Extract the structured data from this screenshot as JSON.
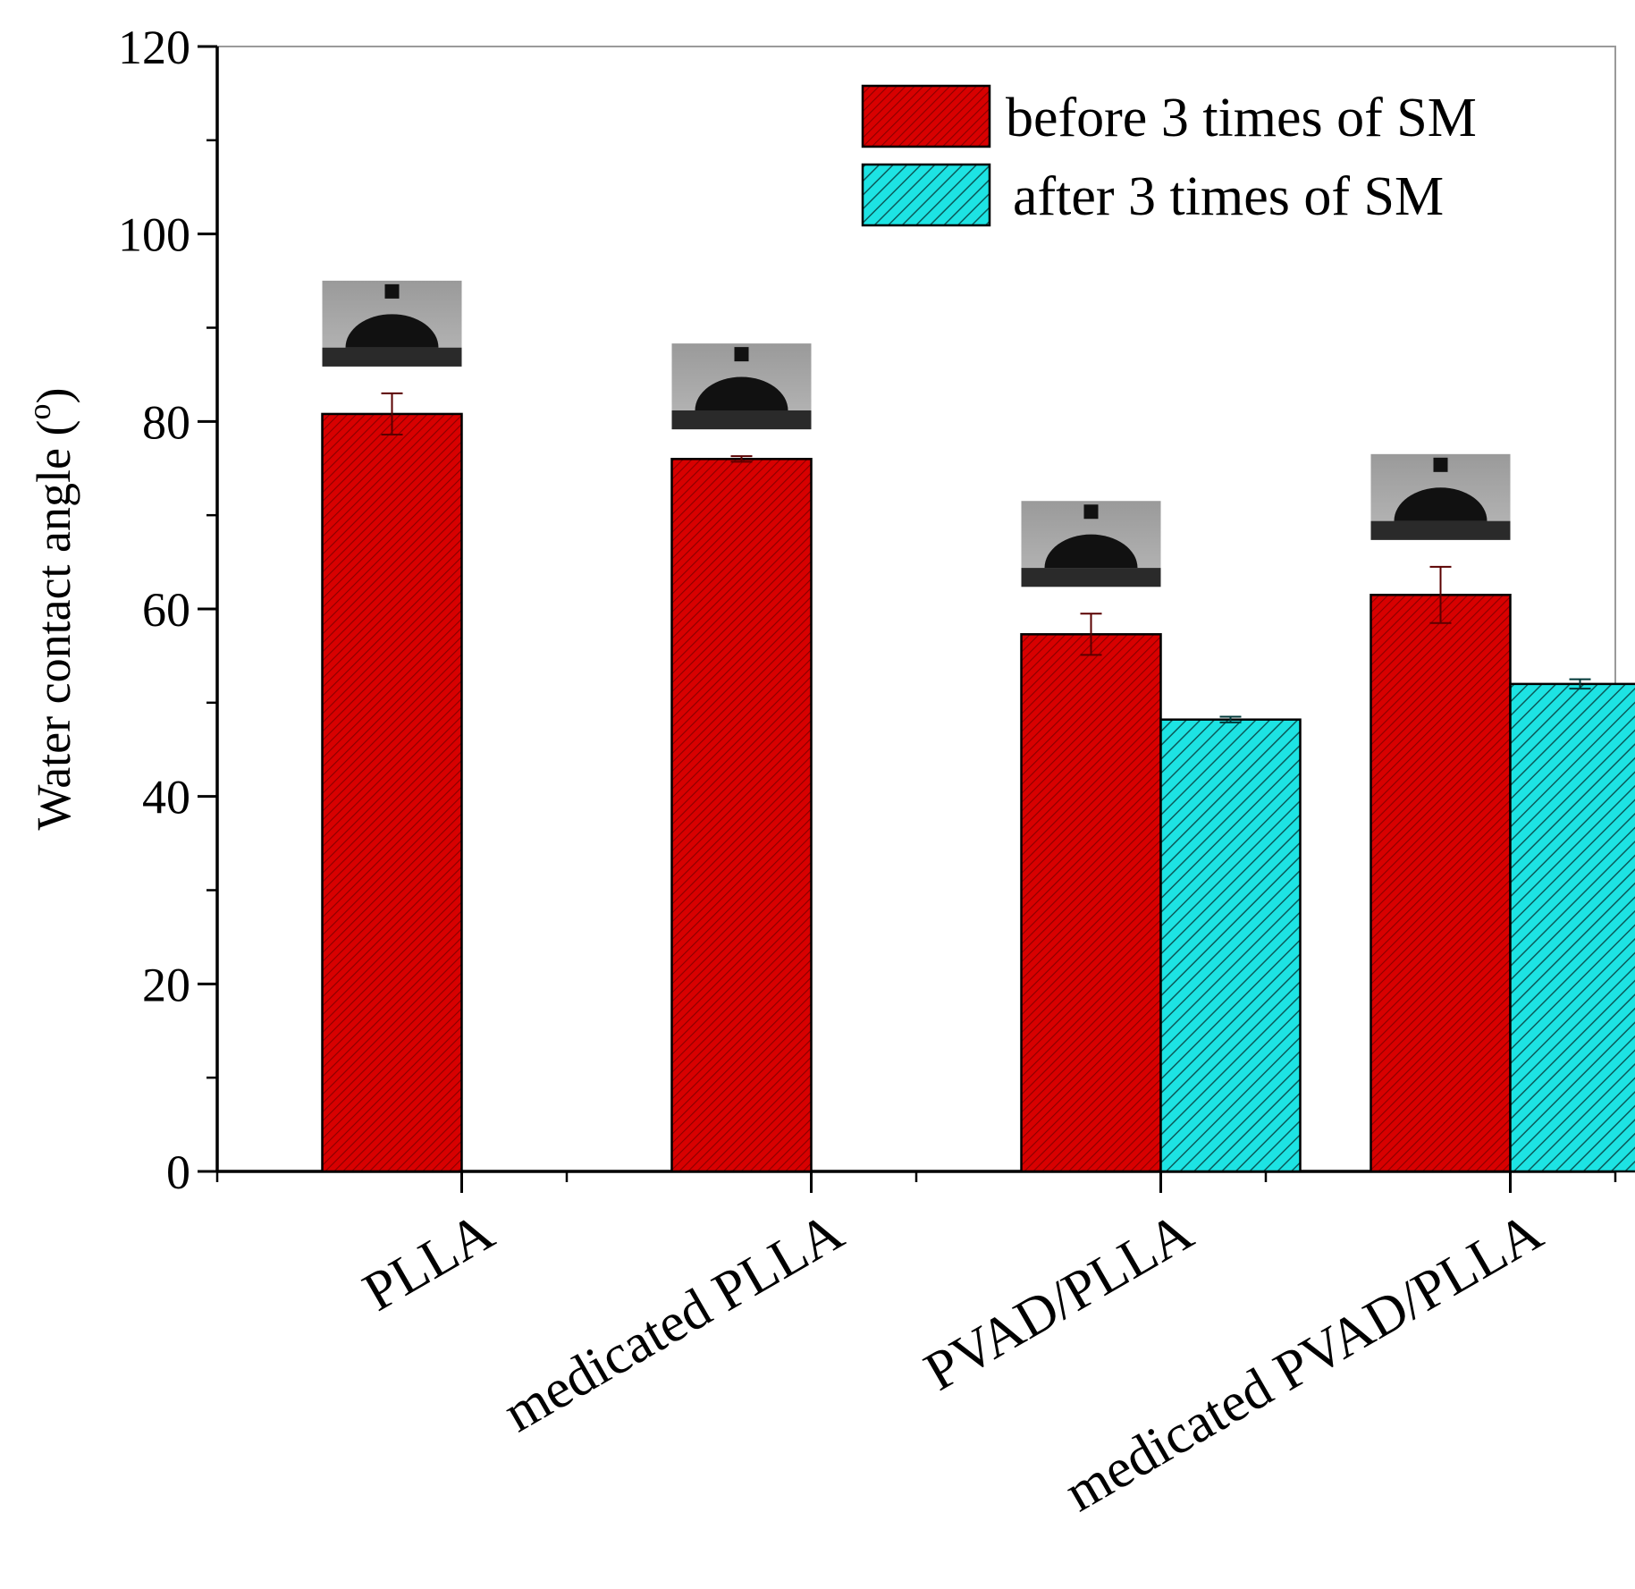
{
  "chart_data": {
    "type": "bar",
    "title": "",
    "xlabel": "",
    "ylabel": "Water contact angle",
    "ylabel_unit": "o",
    "ylim": [
      0,
      120
    ],
    "yticks": [
      0,
      20,
      40,
      60,
      80,
      100,
      120
    ],
    "categories": [
      "PLLA",
      "medicated PLLA",
      "PVAD/PLLA",
      "medicated PVAD/PLLA"
    ],
    "series": [
      {
        "name": "before 3 times of SM",
        "color": "#d40000",
        "hatch": "dense-diagonal",
        "values": [
          80.8,
          76.0,
          57.3,
          61.5
        ],
        "errors": [
          2.2,
          0.3,
          2.2,
          3.0
        ]
      },
      {
        "name": "after 3 times of SM",
        "color": "#19e0e0",
        "hatch": "diagonal",
        "values": [
          null,
          null,
          48.2,
          52.0
        ],
        "errors": [
          null,
          null,
          0.3,
          0.5
        ]
      }
    ],
    "legend_position": "top-right",
    "insets": "contact-angle droplet photos above bars"
  }
}
